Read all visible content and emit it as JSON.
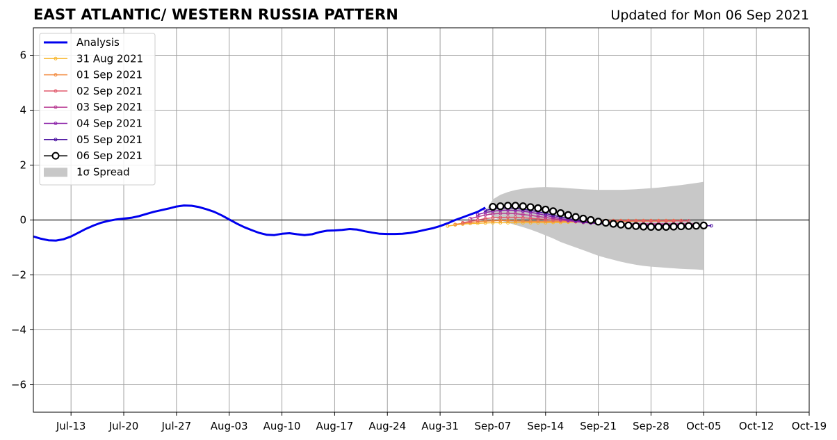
{
  "title": "EAST ATLANTIC/ WESTERN RUSSIA PATTERN",
  "updated": "Updated for Mon 06 Sep 2021",
  "chart_data": {
    "type": "line",
    "x_start_date": "2021-07-08",
    "ylim": [
      -7,
      7
    ],
    "xlim": [
      0,
      103
    ],
    "yticks": [
      {
        "value": 6,
        "label": "6"
      },
      {
        "value": 4,
        "label": "4"
      },
      {
        "value": 2,
        "label": "2"
      },
      {
        "value": 0,
        "label": "0"
      },
      {
        "value": -2,
        "label": "−2"
      },
      {
        "value": -4,
        "label": "−4"
      },
      {
        "value": -6,
        "label": "−6"
      }
    ],
    "xticks": [
      {
        "day": 5,
        "label": "Jul-13"
      },
      {
        "day": 12,
        "label": "Jul-20"
      },
      {
        "day": 19,
        "label": "Jul-27"
      },
      {
        "day": 26,
        "label": "Aug-03"
      },
      {
        "day": 33,
        "label": "Aug-10"
      },
      {
        "day": 40,
        "label": "Aug-17"
      },
      {
        "day": 47,
        "label": "Aug-24"
      },
      {
        "day": 54,
        "label": "Aug-31"
      },
      {
        "day": 61,
        "label": "Sep-07"
      },
      {
        "day": 68,
        "label": "Sep-14"
      },
      {
        "day": 75,
        "label": "Sep-21"
      },
      {
        "day": 82,
        "label": "Sep-28"
      },
      {
        "day": 89,
        "label": "Oct-05"
      },
      {
        "day": 96,
        "label": "Oct-12"
      },
      {
        "day": 103,
        "label": "Oct-19"
      }
    ],
    "grid": true,
    "legend_position": "top-left",
    "analysis": {
      "name": "Analysis",
      "color": "#0000ee",
      "x": [
        0,
        1,
        2,
        3,
        4,
        5,
        6,
        7,
        8,
        9,
        10,
        11,
        12,
        13,
        14,
        15,
        16,
        17,
        18,
        19,
        20,
        21,
        22,
        23,
        24,
        25,
        26,
        27,
        28,
        29,
        30,
        31,
        32,
        33,
        34,
        35,
        36,
        37,
        38,
        39,
        40,
        41,
        42,
        43,
        44,
        45,
        46,
        47,
        48,
        49,
        50,
        51,
        52,
        53,
        54,
        55,
        56,
        57,
        58,
        59,
        60
      ],
      "y": [
        -0.6,
        -0.68,
        -0.74,
        -0.75,
        -0.7,
        -0.6,
        -0.46,
        -0.32,
        -0.2,
        -0.1,
        -0.03,
        0.02,
        0.05,
        0.08,
        0.14,
        0.22,
        0.3,
        0.36,
        0.42,
        0.49,
        0.53,
        0.52,
        0.47,
        0.39,
        0.3,
        0.17,
        0.02,
        -0.13,
        -0.26,
        -0.37,
        -0.47,
        -0.54,
        -0.55,
        -0.5,
        -0.48,
        -0.52,
        -0.55,
        -0.52,
        -0.44,
        -0.39,
        -0.38,
        -0.36,
        -0.33,
        -0.35,
        -0.41,
        -0.46,
        -0.5,
        -0.51,
        -0.51,
        -0.5,
        -0.47,
        -0.42,
        -0.36,
        -0.3,
        -0.22,
        -0.12,
        0.0,
        0.1,
        0.2,
        0.3,
        0.45
      ]
    },
    "forecasts": [
      {
        "name": "31 Aug 2021",
        "color": "#f8b830",
        "x": [
          55,
          56,
          57,
          58,
          59,
          60,
          61,
          62,
          63,
          64,
          65,
          66,
          67,
          68,
          69,
          70,
          71,
          72,
          73,
          74,
          75,
          76,
          77,
          78,
          79,
          80,
          81,
          82,
          83,
          84,
          85
        ],
        "y": [
          -0.22,
          -0.18,
          -0.15,
          -0.13,
          -0.12,
          -0.11,
          -0.1,
          -0.1,
          -0.1,
          -0.1,
          -0.1,
          -0.1,
          -0.1,
          -0.1,
          -0.09,
          -0.09,
          -0.08,
          -0.07,
          -0.07,
          -0.07,
          -0.06,
          -0.06,
          -0.05,
          -0.05,
          -0.05,
          -0.04,
          -0.04,
          -0.04,
          -0.04,
          -0.04,
          -0.04
        ]
      },
      {
        "name": "01 Sep 2021",
        "color": "#f28a3e",
        "x": [
          56,
          57,
          58,
          59,
          60,
          61,
          62,
          63,
          64,
          65,
          66,
          67,
          68,
          69,
          70,
          71,
          72,
          73,
          74,
          75,
          76,
          77,
          78,
          79,
          80,
          81,
          82,
          83,
          84,
          85,
          86
        ],
        "y": [
          -0.16,
          -0.12,
          -0.09,
          -0.06,
          -0.04,
          -0.03,
          -0.02,
          -0.02,
          -0.03,
          -0.04,
          -0.05,
          -0.05,
          -0.05,
          -0.05,
          -0.05,
          -0.04,
          -0.03,
          -0.03,
          -0.03,
          -0.03,
          -0.02,
          -0.02,
          -0.02,
          -0.02,
          -0.02,
          -0.02,
          -0.02,
          -0.02,
          -0.02,
          -0.02,
          -0.02
        ]
      },
      {
        "name": "02 Sep 2021",
        "color": "#e0586a",
        "x": [
          57,
          58,
          59,
          60,
          61,
          62,
          63,
          64,
          65,
          66,
          67,
          68,
          69,
          70,
          71,
          72,
          73,
          74,
          75,
          76,
          77,
          78,
          79,
          80,
          81,
          82,
          83,
          84,
          85,
          86,
          87
        ],
        "y": [
          -0.1,
          -0.05,
          0.0,
          0.05,
          0.08,
          0.09,
          0.1,
          0.1,
          0.08,
          0.06,
          0.04,
          0.02,
          0.0,
          -0.01,
          -0.02,
          -0.03,
          -0.03,
          -0.03,
          -0.03,
          -0.03,
          -0.03,
          -0.03,
          -0.03,
          -0.03,
          -0.03,
          -0.03,
          -0.03,
          -0.03,
          -0.03,
          -0.03,
          -0.03
        ]
      },
      {
        "name": "03 Sep 2021",
        "color": "#b83a92",
        "x": [
          58,
          59,
          60,
          61,
          62,
          63,
          64,
          65,
          66,
          67,
          68,
          69,
          70,
          71,
          72,
          73,
          74,
          75,
          76,
          77,
          78,
          79,
          80,
          81,
          82,
          83,
          84,
          85,
          86,
          87,
          88
        ],
        "y": [
          0.05,
          0.12,
          0.18,
          0.22,
          0.24,
          0.24,
          0.23,
          0.2,
          0.17,
          0.13,
          0.09,
          0.05,
          0.01,
          -0.03,
          -0.06,
          -0.09,
          -0.11,
          -0.12,
          -0.13,
          -0.13,
          -0.14,
          -0.14,
          -0.14,
          -0.14,
          -0.14,
          -0.14,
          -0.14,
          -0.14,
          -0.14,
          -0.14,
          -0.14
        ]
      },
      {
        "name": "04 Sep 2021",
        "color": "#8a20a8",
        "x": [
          59,
          60,
          61,
          62,
          63,
          64,
          65,
          66,
          67,
          68,
          69,
          70,
          71,
          72,
          73,
          74,
          75,
          76,
          77,
          78,
          79,
          80,
          81,
          82,
          83,
          84,
          85,
          86,
          87,
          88,
          89
        ],
        "y": [
          0.2,
          0.27,
          0.32,
          0.35,
          0.36,
          0.35,
          0.32,
          0.28,
          0.23,
          0.17,
          0.11,
          0.05,
          0.0,
          -0.04,
          -0.08,
          -0.11,
          -0.13,
          -0.15,
          -0.16,
          -0.17,
          -0.18,
          -0.18,
          -0.18,
          -0.18,
          -0.18,
          -0.18,
          -0.18,
          -0.18,
          -0.18,
          -0.18,
          -0.18
        ]
      },
      {
        "name": "05 Sep 2021",
        "color": "#4a10a0",
        "x": [
          60,
          61,
          62,
          63,
          64,
          65,
          66,
          67,
          68,
          69,
          70,
          71,
          72,
          73,
          74,
          75,
          76,
          77,
          78,
          79,
          80,
          81,
          82,
          83,
          84,
          85,
          86,
          87,
          88,
          89,
          90
        ],
        "y": [
          0.35,
          0.4,
          0.43,
          0.44,
          0.42,
          0.39,
          0.35,
          0.3,
          0.24,
          0.17,
          0.11,
          0.05,
          0.0,
          -0.05,
          -0.09,
          -0.12,
          -0.15,
          -0.17,
          -0.19,
          -0.2,
          -0.21,
          -0.21,
          -0.21,
          -0.21,
          -0.21,
          -0.21,
          -0.21,
          -0.21,
          -0.21,
          -0.21,
          -0.21
        ]
      },
      {
        "name": "06 Sep 2021",
        "color": "#000000",
        "markers": "open-circle",
        "x": [
          61,
          62,
          63,
          64,
          65,
          66,
          67,
          68,
          69,
          70,
          71,
          72,
          73,
          74,
          75,
          76,
          77,
          78,
          79,
          80,
          81,
          82,
          83,
          84,
          85,
          86,
          87,
          88,
          89
        ],
        "y": [
          0.48,
          0.5,
          0.52,
          0.52,
          0.5,
          0.47,
          0.43,
          0.38,
          0.32,
          0.25,
          0.18,
          0.11,
          0.05,
          0.0,
          -0.06,
          -0.1,
          -0.14,
          -0.17,
          -0.2,
          -0.22,
          -0.24,
          -0.25,
          -0.25,
          -0.25,
          -0.24,
          -0.23,
          -0.22,
          -0.21,
          -0.2
        ]
      }
    ],
    "spread": {
      "name": "1σ Spread",
      "color": "#c8c8c8",
      "x": [
        60,
        61,
        62,
        63,
        64,
        65,
        66,
        67,
        68,
        69,
        70,
        71,
        72,
        73,
        74,
        75,
        76,
        77,
        78,
        79,
        80,
        81,
        82,
        83,
        84,
        85,
        86,
        87,
        88,
        89
      ],
      "upper": [
        0.3,
        0.75,
        0.92,
        1.02,
        1.09,
        1.14,
        1.17,
        1.19,
        1.2,
        1.19,
        1.18,
        1.16,
        1.14,
        1.12,
        1.11,
        1.1,
        1.1,
        1.1,
        1.1,
        1.11,
        1.12,
        1.14,
        1.16,
        1.18,
        1.21,
        1.24,
        1.27,
        1.31,
        1.35,
        1.39
      ],
      "lower": [
        0.3,
        0.14,
        -0.02,
        -0.1,
        -0.18,
        -0.26,
        -0.35,
        -0.45,
        -0.56,
        -0.67,
        -0.8,
        -0.9,
        -1.0,
        -1.1,
        -1.2,
        -1.3,
        -1.38,
        -1.45,
        -1.52,
        -1.58,
        -1.63,
        -1.67,
        -1.7,
        -1.72,
        -1.74,
        -1.76,
        -1.78,
        -1.79,
        -1.8,
        -1.82
      ]
    }
  }
}
